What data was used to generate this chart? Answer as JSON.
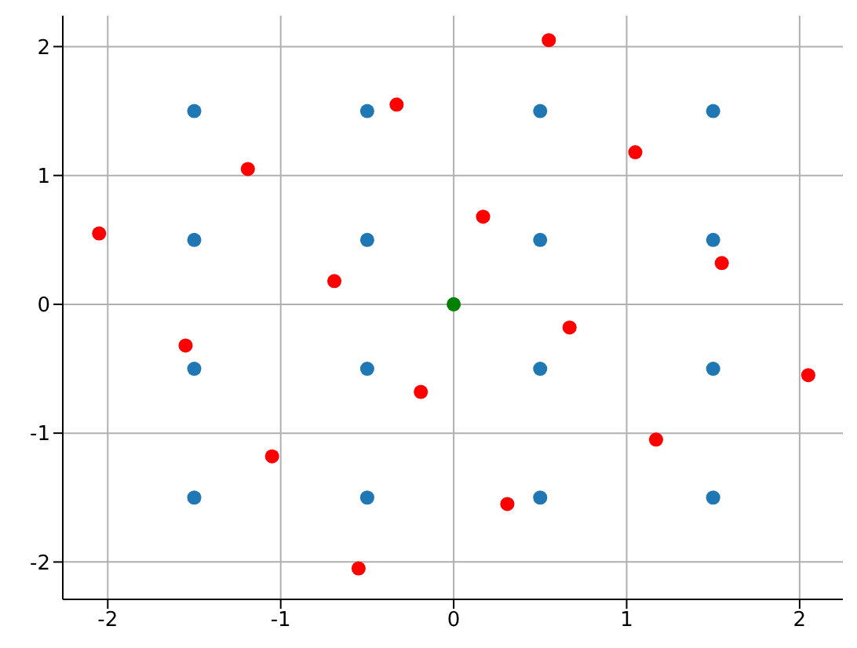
{
  "chart_data": {
    "type": "scatter",
    "xlim": [
      -2.26,
      2.25
    ],
    "ylim": [
      -2.29,
      2.24
    ],
    "xticks": [
      -2,
      -1,
      0,
      1,
      2
    ],
    "yticks": [
      -2,
      -1,
      0,
      1,
      2
    ],
    "grid": true,
    "marker": "circle",
    "series": [
      {
        "color": "#1f77b4",
        "x": [
          -1.5,
          -0.5,
          0.5,
          1.5,
          -1.5,
          -0.5,
          0.5,
          1.5,
          -1.5,
          -0.5,
          0.5,
          1.5,
          -1.5,
          -0.5,
          0.5,
          1.5
        ],
        "values": [
          1.5,
          1.5,
          1.5,
          1.5,
          0.5,
          0.5,
          0.5,
          0.5,
          -0.5,
          -0.5,
          -0.5,
          -0.5,
          -1.5,
          -1.5,
          -1.5,
          -1.5
        ]
      },
      {
        "color": "#ff0000",
        "x": [
          0.55,
          -0.33,
          -1.19,
          1.05,
          -2.05,
          0.17,
          -0.69,
          1.55,
          -1.55,
          0.67,
          -0.19,
          2.05,
          -1.05,
          1.17,
          0.31,
          -0.55
        ],
        "values": [
          2.05,
          1.55,
          1.05,
          1.18,
          0.55,
          0.68,
          0.18,
          0.32,
          -0.32,
          -0.18,
          -0.68,
          -0.55,
          -1.18,
          -1.05,
          -1.55,
          -2.05
        ]
      },
      {
        "color": "#008000",
        "x": [
          0
        ],
        "values": [
          0
        ]
      }
    ]
  }
}
